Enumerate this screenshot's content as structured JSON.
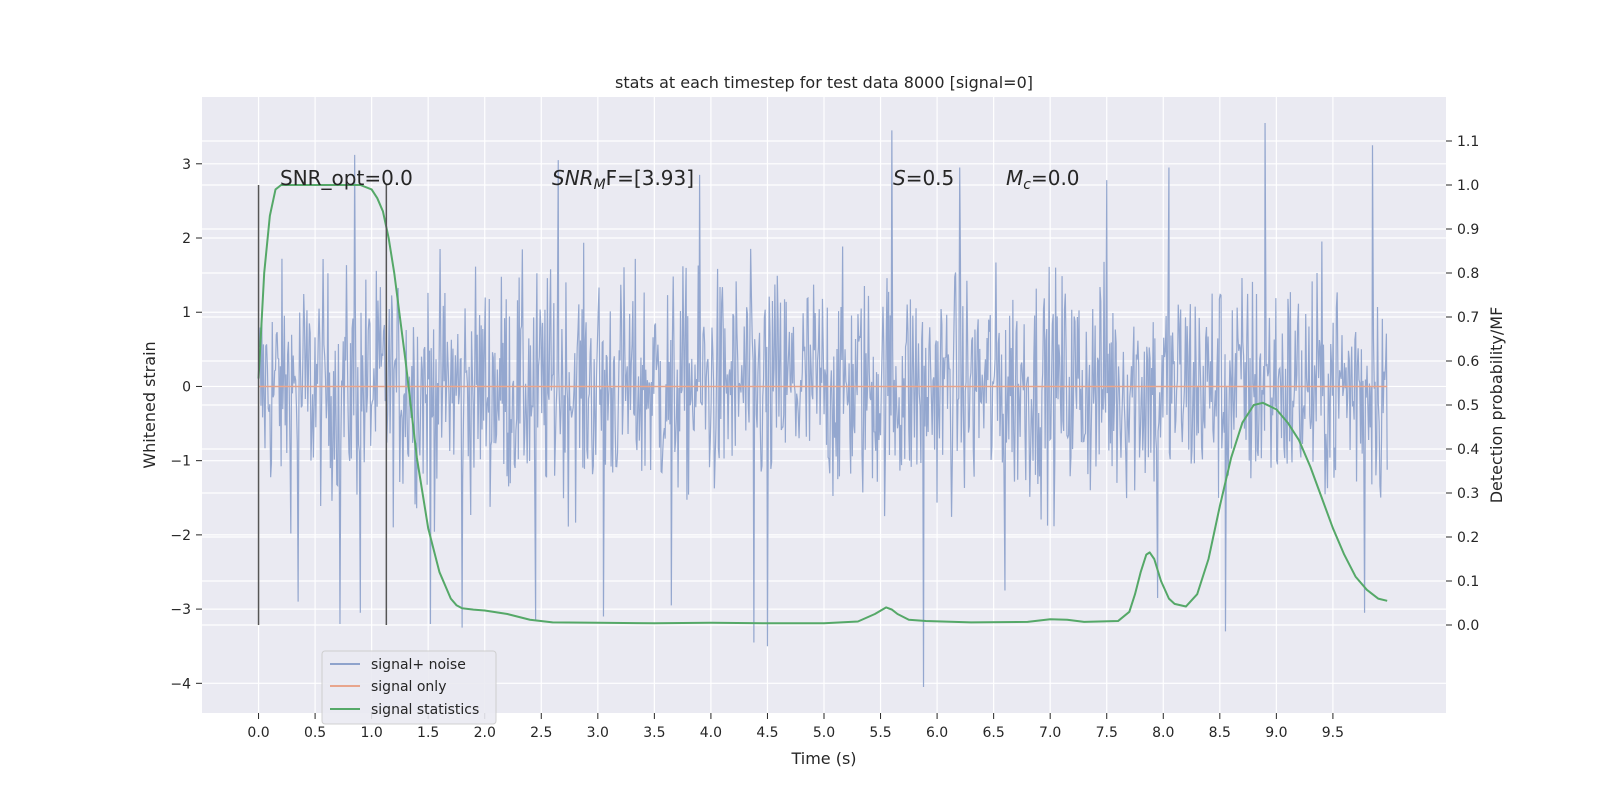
{
  "chart_data": {
    "type": "line",
    "title": "stats at each timestep for test data 8000 [signal=0]",
    "xlabel": "Time (s)",
    "ylabel": "Whitened strain",
    "y2label": "Detection probability/MF",
    "xlim": [
      -0.5,
      10.5
    ],
    "ylim": [
      -4.4,
      3.9
    ],
    "y2lim": [
      -0.2,
      1.2
    ],
    "xticks": [
      "0.0",
      "0.5",
      "1.0",
      "1.5",
      "2.0",
      "2.5",
      "3.0",
      "3.5",
      "4.0",
      "4.5",
      "5.0",
      "5.5",
      "6.0",
      "6.5",
      "7.0",
      "7.5",
      "8.0",
      "8.5",
      "9.0",
      "9.5"
    ],
    "yticks": [
      "3",
      "2",
      "1",
      "0",
      "−1",
      "−2",
      "−3",
      "−4"
    ],
    "y2ticks": [
      "1.1",
      "1.0",
      "0.9",
      "0.8",
      "0.7",
      "0.6",
      "0.5",
      "0.4",
      "0.3",
      "0.2",
      "0.1",
      "0.0"
    ],
    "grid": true,
    "legend_placement": "lower-left",
    "annotations": {
      "snr_opt": "SNR_opt=0.0",
      "snr_mf_base": "SNR",
      "snr_mf_sub": "M",
      "snr_mf_rest": "F=[3.93]",
      "s_italic": "S",
      "s_rest": "=0.5",
      "mc_italic": "M",
      "mc_sub": "c",
      "mc_rest": "=0.0"
    },
    "vlines": [
      {
        "x": 0.0,
        "y2_range": [
          0.0,
          1.0
        ]
      },
      {
        "x": 1.13,
        "y2_range": [
          0.0,
          1.0
        ]
      }
    ],
    "noise_envelope": {
      "x_range": [
        0.0,
        9.98
      ],
      "typical_max": 1.5,
      "typical_min": -1.5,
      "extreme_max": 3.55,
      "extreme_min": -4.05
    },
    "series": [
      {
        "name": "signal+ noise",
        "axis": "left",
        "color": "#8fa3cc",
        "spikes": [
          {
            "x": 0.85,
            "y": 3.12
          },
          {
            "x": 2.65,
            "y": 3.05
          },
          {
            "x": 5.6,
            "y": 3.45
          },
          {
            "x": 8.9,
            "y": 3.55
          },
          {
            "x": 9.85,
            "y": 3.25
          },
          {
            "x": 7.5,
            "y": 2.78
          },
          {
            "x": 8.05,
            "y": 2.95
          },
          {
            "x": 3.9,
            "y": 2.85
          },
          {
            "x": 6.2,
            "y": 2.95
          },
          {
            "x": 5.88,
            "y": -4.05
          },
          {
            "x": 4.5,
            "y": -3.5
          },
          {
            "x": 4.38,
            "y": -3.45
          },
          {
            "x": 8.55,
            "y": -3.3
          },
          {
            "x": 1.52,
            "y": -3.2
          },
          {
            "x": 0.72,
            "y": -3.2
          },
          {
            "x": 9.78,
            "y": -3.05
          },
          {
            "x": 0.9,
            "y": -3.05
          },
          {
            "x": 2.45,
            "y": -3.15
          },
          {
            "x": 3.05,
            "y": -3.1
          },
          {
            "x": 3.65,
            "y": -2.95
          },
          {
            "x": 7.95,
            "y": -2.85
          },
          {
            "x": 6.6,
            "y": -2.75
          },
          {
            "x": 1.8,
            "y": -3.25
          },
          {
            "x": 0.35,
            "y": -2.9
          }
        ]
      },
      {
        "name": "signal only",
        "axis": "left",
        "color": "#e8a58c",
        "x": [
          0.0,
          9.98
        ],
        "y": [
          0.0,
          0.0
        ]
      },
      {
        "name": "signal statistics",
        "axis": "right",
        "color": "#55a868",
        "x": [
          0.0,
          0.05,
          0.1,
          0.15,
          0.2,
          0.3,
          0.5,
          0.7,
          0.9,
          1.0,
          1.05,
          1.1,
          1.15,
          1.2,
          1.3,
          1.4,
          1.5,
          1.6,
          1.7,
          1.75,
          1.8,
          1.9,
          2.0,
          2.2,
          2.4,
          2.6,
          3.0,
          3.5,
          4.0,
          4.5,
          5.0,
          5.3,
          5.45,
          5.55,
          5.6,
          5.65,
          5.75,
          5.9,
          6.3,
          6.8,
          7.0,
          7.15,
          7.3,
          7.6,
          7.7,
          7.75,
          7.8,
          7.85,
          7.88,
          7.92,
          7.98,
          8.05,
          8.1,
          8.2,
          8.3,
          8.4,
          8.5,
          8.6,
          8.7,
          8.8,
          8.88,
          9.0,
          9.1,
          9.2,
          9.3,
          9.4,
          9.5,
          9.6,
          9.7,
          9.8,
          9.9,
          9.98
        ],
        "y": [
          0.56,
          0.8,
          0.93,
          0.99,
          1.0,
          1.0,
          1.0,
          1.0,
          1.0,
          0.99,
          0.97,
          0.94,
          0.88,
          0.8,
          0.6,
          0.38,
          0.22,
          0.12,
          0.06,
          0.045,
          0.038,
          0.035,
          0.033,
          0.025,
          0.012,
          0.006,
          0.005,
          0.004,
          0.005,
          0.004,
          0.004,
          0.008,
          0.025,
          0.04,
          0.035,
          0.025,
          0.012,
          0.009,
          0.006,
          0.007,
          0.013,
          0.012,
          0.007,
          0.009,
          0.03,
          0.07,
          0.12,
          0.16,
          0.165,
          0.15,
          0.1,
          0.06,
          0.048,
          0.042,
          0.07,
          0.15,
          0.27,
          0.38,
          0.46,
          0.5,
          0.505,
          0.49,
          0.46,
          0.42,
          0.36,
          0.29,
          0.22,
          0.16,
          0.11,
          0.08,
          0.06,
          0.055
        ]
      }
    ]
  }
}
